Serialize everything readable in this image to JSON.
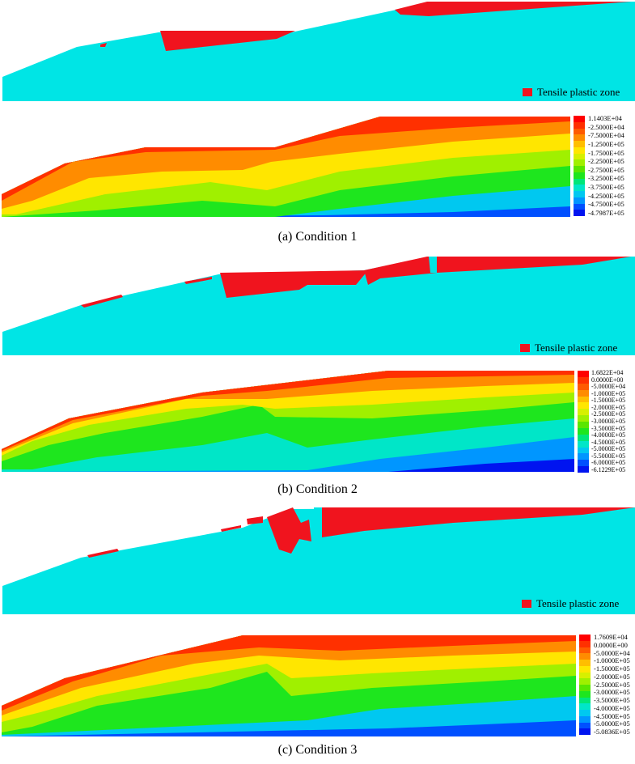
{
  "plastic_legend_label": "Tensile plastic zone",
  "colors": {
    "slope": "#00e5e5",
    "plastic": "#f0141e",
    "scale": [
      "#ff0000",
      "#ff3000",
      "#ff5a00",
      "#ff8c00",
      "#ffbe00",
      "#ffe600",
      "#d7f000",
      "#a0f000",
      "#5ae600",
      "#1ee61e",
      "#00e678",
      "#00e6c8",
      "#00c8f0",
      "#0096ff",
      "#0050ff",
      "#0014f0"
    ]
  },
  "conditions": [
    {
      "caption": "(a) Condition 1",
      "colorbar_labels": [
        "1.1403E+04",
        "-2.5000E+04",
        "-7.5000E+04",
        "-1.2500E+05",
        "-1.7500E+05",
        "-2.2500E+05",
        "-2.7500E+05",
        "-3.2500E+05",
        "-3.7500E+05",
        "-4.2500E+05",
        "-4.7500E+05",
        "-4.7987E+05"
      ]
    },
    {
      "caption": "(b) Condition 2",
      "colorbar_labels": [
        "1.6822E+04",
        "0.0000E+00",
        "-5.0000E+04",
        "-1.0000E+05",
        "-1.5000E+05",
        "-2.0000E+05",
        "-2.5000E+05",
        "-3.0000E+05",
        "-3.5000E+05",
        "-4.0000E+05",
        "-4.5000E+05",
        "-5.0000E+05",
        "-5.5000E+05",
        "-6.0000E+05",
        "-6.1229E+05"
      ]
    },
    {
      "caption": "(c) Condition 3",
      "colorbar_labels": [
        "1.7609E+04",
        "0.0000E+00",
        "-5.0000E+04",
        "-1.0000E+05",
        "-1.5000E+05",
        "-2.0000E+05",
        "-2.5000E+05",
        "-3.0000E+05",
        "-3.5000E+05",
        "-4.0000E+05",
        "-4.5000E+05",
        "-5.0000E+05",
        "-5.0836E+05"
      ]
    }
  ]
}
